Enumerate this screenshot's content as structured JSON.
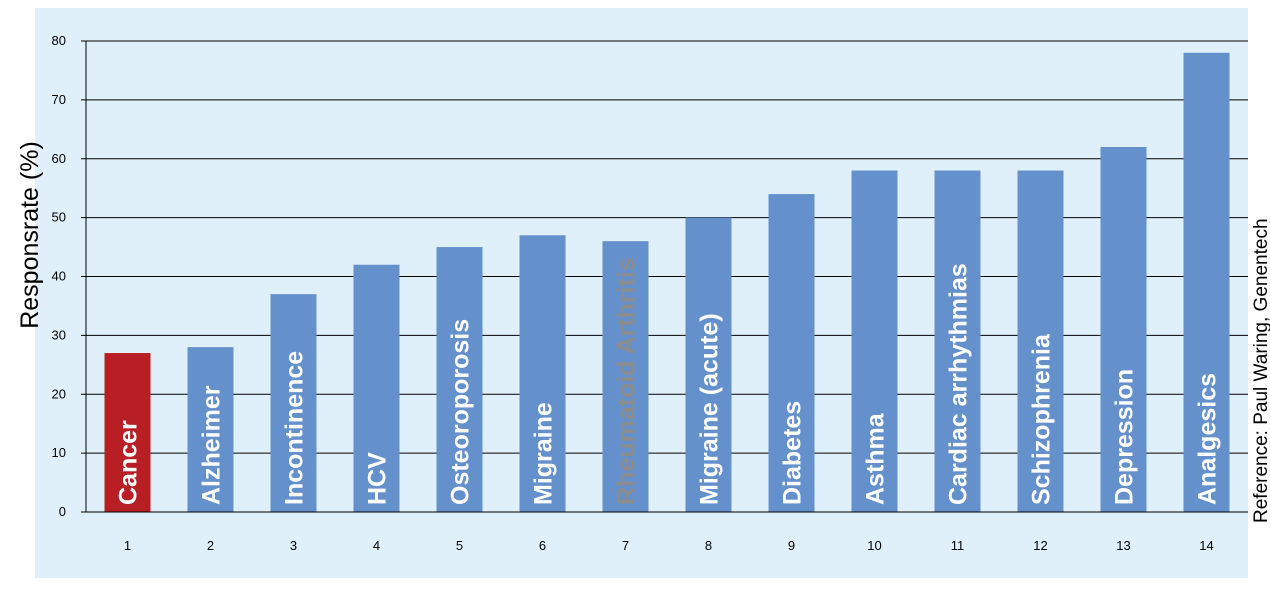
{
  "reference_text": "Reference: Paul Waring, Genentech",
  "chart_data": {
    "type": "bar",
    "title": "",
    "xlabel": "",
    "ylabel": "Responsrate (%)",
    "ylim": [
      0,
      80
    ],
    "yticks": [
      0,
      10,
      20,
      30,
      40,
      50,
      60,
      70,
      80
    ],
    "grid": "horizontal",
    "categories": [
      "1",
      "2",
      "3",
      "4",
      "5",
      "6",
      "7",
      "8",
      "9",
      "10",
      "11",
      "12",
      "13",
      "14"
    ],
    "bar_labels": [
      "Cancer",
      "Alzheimer",
      "Incontinence",
      "HCV",
      "Osteoroporosis",
      "Migraine",
      "Rheumatoid Arthritis",
      "Migraine (acute)",
      "Diabetes",
      "Asthma",
      "Cardiac arrhythmias",
      "Schizophrenia",
      "Depression",
      "Analgesics"
    ],
    "values": [
      27,
      28,
      37,
      42,
      45,
      47,
      46,
      50,
      54,
      58,
      58,
      58,
      62,
      78
    ],
    "colors": {
      "bar": "#6490cc",
      "highlight_bar": "#b81f24",
      "highlight_index": 0,
      "label_white": "#ffffff",
      "label_gray": "#8c8c8c",
      "panel_background": "#dff0fb",
      "gridline": "#000000"
    }
  }
}
